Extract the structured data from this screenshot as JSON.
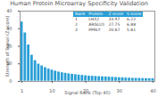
{
  "chart_data": {
    "type": "bar",
    "title": "Human Protein Microarray Specificity Validation",
    "x_label": "Signal Rank (Top 40)",
    "y_label": "Strength of Signal (Z score)",
    "x": [
      1,
      2,
      3,
      4,
      5,
      6,
      7,
      8,
      9,
      10,
      11,
      12,
      13,
      14,
      15,
      16,
      17,
      18,
      19,
      20,
      21,
      22,
      23,
      24,
      25,
      26,
      27,
      28,
      29,
      30,
      31,
      32,
      33,
      34,
      35,
      36,
      37,
      38,
      39,
      40
    ],
    "values": [
      33.97,
      27.75,
      20.87,
      15.06,
      12,
      10,
      9,
      8,
      7.2,
      6.6,
      6,
      5.5,
      5.1,
      4.8,
      4.5,
      4.2,
      4,
      3.8,
      3.6,
      3.4,
      3.2,
      3.1,
      3,
      2.9,
      2.8,
      2.7,
      2.6,
      2.5,
      2.4,
      2.3,
      2.2,
      2.1,
      2,
      1.95,
      1.9,
      1.85,
      1.8,
      1.75,
      1.7,
      1.65
    ],
    "color": "#2a9fd6",
    "xticks": [
      1,
      10,
      20,
      30,
      40
    ],
    "ylim": [
      0,
      40
    ],
    "yticks": [
      0,
      10,
      20,
      30,
      40
    ],
    "grid": false,
    "table": {
      "columns": [
        "Rank",
        "Protein",
        "Z score",
        "S score"
      ],
      "rows": [
        [
          1,
          "LHX2",
          33.97,
          6.22
        ],
        [
          2,
          "ARGLU1",
          27.75,
          6.88
        ],
        [
          3,
          "PPRLY",
          20.87,
          5.81
        ]
      ]
    }
  }
}
